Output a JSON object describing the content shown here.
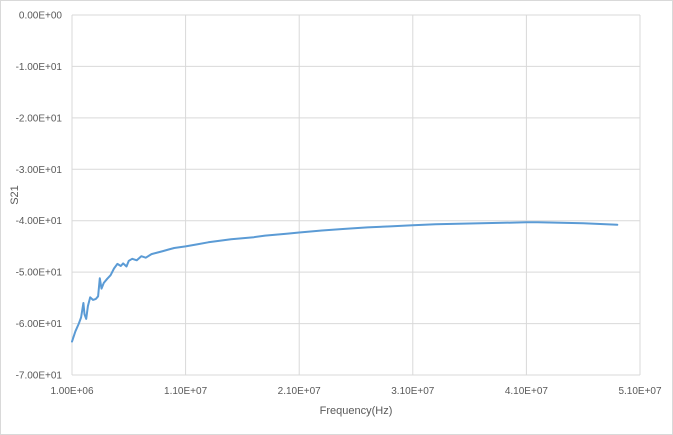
{
  "chart_data": {
    "type": "line",
    "title": "",
    "xlabel": "Frequency(Hz)",
    "ylabel": "S21",
    "xlim": [
      1000000,
      51000000
    ],
    "ylim": [
      -70,
      0
    ],
    "grid": true,
    "legend": "none",
    "x_ticks": [
      1000000,
      11000000,
      21000000,
      31000000,
      41000000,
      51000000
    ],
    "x_tick_labels": [
      "1.00E+06",
      "1.10E+07",
      "2.10E+07",
      "3.10E+07",
      "4.10E+07",
      "5.10E+07"
    ],
    "y_ticks": [
      0,
      -10,
      -20,
      -30,
      -40,
      -50,
      -60,
      -70
    ],
    "y_tick_labels": [
      "0.00E+00",
      "-1.00E+01",
      "-2.00E+01",
      "-3.00E+01",
      "-4.00E+01",
      "-5.00E+01",
      "-6.00E+01",
      "-7.00E+01"
    ],
    "colors": {
      "series": "#5b9bd5",
      "grid": "#d9d9d9",
      "text": "#595959"
    },
    "series": [
      {
        "x": [
          1000000,
          1300000,
          1600000,
          1800000,
          2000000,
          2100000,
          2250000,
          2400000,
          2600000,
          2850000,
          3100000,
          3300000,
          3450000,
          3600000,
          3800000,
          4100000,
          4400000,
          4700000,
          5000000,
          5300000,
          5500000,
          5800000,
          6000000,
          6300000,
          6700000,
          7100000,
          7500000,
          8000000,
          8500000,
          9000000,
          9500000,
          10000000,
          11000000,
          12000000,
          13000000,
          14000000,
          15000000,
          16000000,
          17000000,
          18000000,
          19000000,
          20000000,
          21000000,
          23000000,
          25000000,
          27000000,
          29000000,
          31000000,
          33000000,
          35000000,
          37000000,
          39000000,
          41000000,
          42000000,
          44000000,
          46000000,
          48000000,
          49000000
        ],
        "y": [
          -63.5,
          -61.5,
          -60.0,
          -58.8,
          -56.0,
          -58.2,
          -59.1,
          -56.6,
          -54.9,
          -55.4,
          -55.2,
          -54.7,
          -51.2,
          -53.2,
          -52.1,
          -51.3,
          -50.6,
          -49.3,
          -48.4,
          -48.8,
          -48.3,
          -48.9,
          -47.8,
          -47.4,
          -47.7,
          -46.9,
          -47.2,
          -46.5,
          -46.2,
          -45.9,
          -45.6,
          -45.3,
          -45.0,
          -44.6,
          -44.2,
          -43.9,
          -43.6,
          -43.4,
          -43.2,
          -42.9,
          -42.7,
          -42.5,
          -42.3,
          -41.9,
          -41.6,
          -41.3,
          -41.1,
          -40.9,
          -40.7,
          -40.6,
          -40.5,
          -40.4,
          -40.3,
          -40.3,
          -40.4,
          -40.5,
          -40.7,
          -40.8
        ]
      }
    ]
  }
}
